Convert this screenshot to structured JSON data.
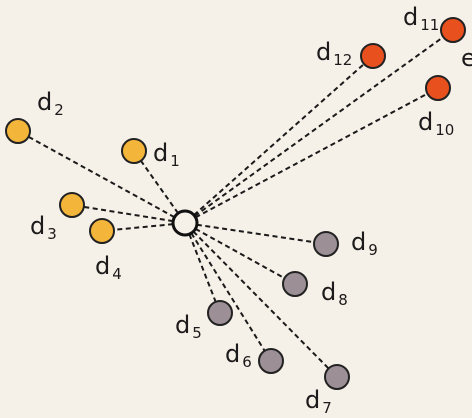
{
  "edge_fragment": "e",
  "center": {
    "name": "query-point"
  },
  "nodes": [
    {
      "id": "d1",
      "base": "d",
      "sub": "1",
      "group": "yellow"
    },
    {
      "id": "d2",
      "base": "d",
      "sub": "2",
      "group": "yellow"
    },
    {
      "id": "d3",
      "base": "d",
      "sub": "3",
      "group": "yellow"
    },
    {
      "id": "d4",
      "base": "d",
      "sub": "4",
      "group": "yellow"
    },
    {
      "id": "d5",
      "base": "d",
      "sub": "5",
      "group": "gray"
    },
    {
      "id": "d6",
      "base": "d",
      "sub": "6",
      "group": "gray"
    },
    {
      "id": "d7",
      "base": "d",
      "sub": "7",
      "group": "gray"
    },
    {
      "id": "d8",
      "base": "d",
      "sub": "8",
      "group": "gray"
    },
    {
      "id": "d9",
      "base": "d",
      "sub": "9",
      "group": "gray"
    },
    {
      "id": "d10",
      "base": "d",
      "sub": "10",
      "group": "red"
    },
    {
      "id": "d11",
      "base": "d",
      "sub": "11",
      "group": "red"
    },
    {
      "id": "d12",
      "base": "d",
      "sub": "12",
      "group": "red"
    }
  ],
  "colors": {
    "yellow": "#f4b63a",
    "gray": "#9c9096",
    "red": "#e8501e",
    "background": "#f6f1e8"
  }
}
